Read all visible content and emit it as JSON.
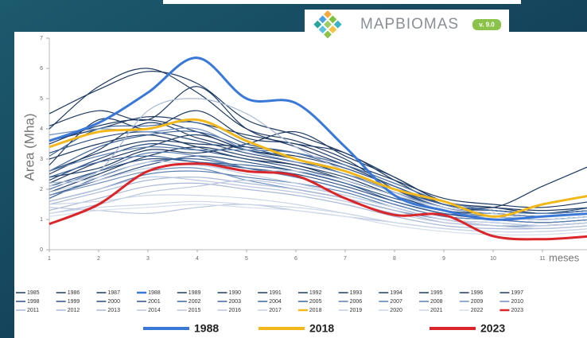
{
  "brand": {
    "name": "MAPBIOMAS",
    "version": "v. 9.0"
  },
  "chart_data": {
    "type": "line",
    "y_label": "Area (Mha)",
    "x_label": "meses",
    "x": [
      1,
      2,
      3,
      4,
      5,
      6,
      7,
      8,
      9,
      10,
      11,
      12
    ],
    "xlim": [
      1,
      11.9
    ],
    "xticks": [
      1,
      2,
      3,
      4,
      5,
      6,
      7,
      8,
      9,
      10,
      11
    ],
    "ylim": [
      0,
      7
    ],
    "yticks": [
      0,
      1,
      2,
      3,
      4,
      5,
      6,
      7
    ],
    "series": [
      {
        "name": "1985",
        "color": "#1f3b63",
        "values": [
          4.5,
          5.3,
          5.9,
          5.5,
          4.3,
          3.8,
          3.2,
          2.4,
          1.6,
          1.4,
          1.3,
          1.4
        ]
      },
      {
        "name": "1986",
        "color": "#1f3b63",
        "values": [
          3.6,
          4.0,
          4.4,
          4.2,
          3.8,
          3.5,
          3.2,
          2.3,
          1.5,
          1.3,
          1.2,
          1.3
        ]
      },
      {
        "name": "1987",
        "color": "#1f3b63",
        "values": [
          2.5,
          3.3,
          4.2,
          3.7,
          3.3,
          3.0,
          2.6,
          1.9,
          1.4,
          1.2,
          1.1,
          1.2
        ]
      },
      {
        "name": "1988",
        "color": "#3a78d8",
        "width": 3,
        "values": [
          3.6,
          4.2,
          5.2,
          6.35,
          5.0,
          4.85,
          3.4,
          1.8,
          1.3,
          1.0,
          1.1,
          1.2
        ]
      },
      {
        "name": "1989",
        "color": "#1f3b63",
        "values": [
          2.8,
          4.3,
          4.0,
          4.6,
          3.7,
          3.5,
          2.9,
          2.3,
          1.7,
          1.5,
          1.4,
          1.6
        ]
      },
      {
        "name": "1990",
        "color": "#1f3b63",
        "values": [
          3.5,
          4.1,
          4.3,
          3.9,
          3.3,
          3.1,
          2.7,
          2.1,
          1.5,
          1.3,
          1.2,
          1.3
        ]
      },
      {
        "name": "1991",
        "color": "#1f3b63",
        "values": [
          4.0,
          5.4,
          6.0,
          5.2,
          4.0,
          3.6,
          3.0,
          2.0,
          1.4,
          1.2,
          1.1,
          1.2
        ]
      },
      {
        "name": "1992",
        "color": "#1f3b63",
        "values": [
          2.4,
          2.7,
          3.3,
          3.2,
          3.5,
          3.9,
          3.1,
          2.4,
          1.6,
          1.4,
          1.2,
          1.3
        ]
      },
      {
        "name": "1993",
        "color": "#1f3b63",
        "values": [
          3.0,
          3.5,
          3.8,
          3.4,
          3.0,
          2.8,
          2.3,
          1.8,
          1.3,
          1.2,
          1.1,
          1.2
        ]
      },
      {
        "name": "1994",
        "color": "#1f3b63",
        "values": [
          1.9,
          2.5,
          3.1,
          3.4,
          3.1,
          2.8,
          2.4,
          1.8,
          1.3,
          1.1,
          1.0,
          1.1
        ]
      },
      {
        "name": "1995",
        "color": "#1f3b63",
        "values": [
          2.2,
          2.9,
          3.4,
          3.8,
          3.3,
          3.0,
          2.5,
          2.0,
          1.4,
          1.3,
          1.2,
          1.3
        ]
      },
      {
        "name": "1996",
        "color": "#1f3b63",
        "values": [
          4.1,
          4.6,
          4.3,
          5.4,
          4.0,
          3.4,
          2.8,
          2.1,
          1.5,
          1.3,
          1.2,
          1.3
        ]
      },
      {
        "name": "1997",
        "color": "#1f3b63",
        "values": [
          2.6,
          3.2,
          3.6,
          3.5,
          3.4,
          3.2,
          2.8,
          2.2,
          1.6,
          1.4,
          2.1,
          2.8
        ]
      },
      {
        "name": "1998",
        "color": "#2c4f80",
        "values": [
          1.8,
          2.3,
          2.8,
          3.1,
          2.9,
          2.6,
          2.2,
          1.7,
          1.3,
          1.1,
          1.0,
          1.1
        ]
      },
      {
        "name": "1999",
        "color": "#2c4f80",
        "values": [
          3.2,
          3.7,
          3.9,
          3.6,
          3.2,
          2.9,
          2.6,
          2.0,
          1.5,
          1.3,
          1.2,
          1.4
        ]
      },
      {
        "name": "2000",
        "color": "#2c4f80",
        "values": [
          2.3,
          3.0,
          3.5,
          3.3,
          3.0,
          2.7,
          2.3,
          1.8,
          1.3,
          1.2,
          1.1,
          1.2
        ]
      },
      {
        "name": "2001",
        "color": "#2c4f80",
        "values": [
          2.1,
          2.6,
          3.0,
          2.9,
          2.7,
          2.5,
          2.1,
          1.6,
          1.2,
          1.0,
          0.9,
          1.0
        ]
      },
      {
        "name": "2002",
        "color": "#3d649a",
        "values": [
          2.6,
          3.4,
          3.8,
          3.9,
          3.4,
          3.0,
          2.6,
          2.0,
          1.4,
          1.2,
          1.1,
          1.2
        ]
      },
      {
        "name": "2003",
        "color": "#3d649a",
        "values": [
          1.7,
          2.4,
          2.9,
          3.0,
          2.7,
          2.4,
          2.0,
          1.5,
          1.1,
          1.0,
          0.9,
          1.0
        ]
      },
      {
        "name": "2004",
        "color": "#3d649a",
        "values": [
          2.4,
          2.9,
          3.1,
          2.9,
          2.8,
          2.6,
          2.2,
          1.6,
          1.2,
          1.1,
          1.0,
          1.1
        ]
      },
      {
        "name": "2005",
        "color": "#3d649a",
        "values": [
          3.1,
          4.0,
          4.1,
          4.2,
          3.5,
          3.2,
          2.7,
          2.1,
          1.5,
          1.3,
          1.2,
          1.3
        ]
      },
      {
        "name": "2006",
        "color": "#5b7fb0",
        "values": [
          2.0,
          2.6,
          3.2,
          3.1,
          2.7,
          2.4,
          2.0,
          1.5,
          1.1,
          1.0,
          0.9,
          1.0
        ]
      },
      {
        "name": "2007",
        "color": "#5b7fb0",
        "values": [
          2.6,
          3.1,
          3.4,
          3.3,
          3.3,
          3.2,
          2.8,
          2.2,
          1.6,
          1.3,
          1.2,
          1.3
        ]
      },
      {
        "name": "2008",
        "color": "#5b7fb0",
        "values": [
          1.6,
          2.0,
          2.5,
          2.6,
          2.4,
          2.2,
          1.9,
          1.4,
          1.0,
          0.9,
          0.8,
          0.9
        ]
      },
      {
        "name": "2009",
        "color": "#6f8fbd",
        "values": [
          1.8,
          2.2,
          2.6,
          2.7,
          2.3,
          2.0,
          1.7,
          1.3,
          1.0,
          0.8,
          0.8,
          0.9
        ]
      },
      {
        "name": "2010",
        "color": "#6f8fbd",
        "values": [
          3.8,
          4.0,
          3.9,
          4.0,
          3.3,
          2.9,
          2.5,
          1.9,
          1.4,
          1.2,
          1.1,
          1.2
        ]
      },
      {
        "name": "2011",
        "color": "#a9b9d6",
        "values": [
          2.2,
          2.6,
          4.6,
          5.0,
          4.5,
          3.4,
          2.6,
          1.9,
          1.3,
          1.1,
          1.0,
          1.1
        ]
      },
      {
        "name": "2012",
        "color": "#a9b9d6",
        "values": [
          1.5,
          1.9,
          2.3,
          2.4,
          2.2,
          2.0,
          1.7,
          1.3,
          0.9,
          0.8,
          0.7,
          0.8
        ]
      },
      {
        "name": "2013",
        "color": "#a9b9d6",
        "values": [
          1.3,
          1.7,
          2.1,
          2.2,
          2.0,
          1.8,
          1.5,
          1.1,
          0.8,
          0.7,
          0.7,
          0.8
        ]
      },
      {
        "name": "2014",
        "color": "#b9c6dd",
        "values": [
          1.2,
          1.5,
          1.9,
          2.1,
          2.3,
          2.1,
          1.8,
          1.4,
          1.0,
          0.8,
          0.7,
          0.8
        ]
      },
      {
        "name": "2015",
        "color": "#b9c6dd",
        "values": [
          1.4,
          1.3,
          1.2,
          1.4,
          1.5,
          1.3,
          1.1,
          0.9,
          0.7,
          0.6,
          0.6,
          0.7
        ]
      },
      {
        "name": "2016",
        "color": "#b9c6dd",
        "values": [
          1.6,
          2.0,
          2.4,
          2.3,
          2.1,
          1.9,
          1.6,
          1.2,
          0.9,
          0.8,
          0.7,
          0.8
        ]
      },
      {
        "name": "2017",
        "color": "#c3cfe3",
        "values": [
          1.9,
          2.3,
          2.7,
          2.8,
          2.5,
          2.2,
          1.8,
          1.4,
          1.0,
          0.9,
          0.8,
          0.9
        ]
      },
      {
        "name": "2018",
        "color": "#f2b81b",
        "width": 3,
        "values": [
          3.4,
          3.9,
          4.0,
          4.3,
          3.6,
          3.0,
          2.6,
          2.0,
          1.6,
          1.1,
          1.5,
          1.8
        ]
      },
      {
        "name": "2019",
        "color": "#c3cfe3",
        "values": [
          2.1,
          2.4,
          2.9,
          2.8,
          2.6,
          2.6,
          2.3,
          1.8,
          1.4,
          1.2,
          1.0,
          1.1
        ]
      },
      {
        "name": "2020",
        "color": "#ccd6e7",
        "values": [
          1.2,
          1.4,
          1.5,
          1.6,
          1.5,
          1.4,
          1.2,
          0.9,
          0.7,
          0.6,
          0.6,
          0.7
        ]
      },
      {
        "name": "2021",
        "color": "#ccd6e7",
        "values": [
          1.5,
          1.6,
          1.8,
          1.8,
          1.7,
          1.5,
          1.2,
          0.9,
          0.7,
          0.6,
          0.6,
          0.7
        ]
      },
      {
        "name": "2022",
        "color": "#d5deec",
        "values": [
          1.1,
          1.3,
          1.4,
          1.5,
          1.4,
          1.3,
          1.1,
          0.8,
          0.6,
          0.5,
          0.5,
          0.6
        ]
      },
      {
        "name": "2023",
        "color": "#d9262a",
        "width": 3,
        "values": [
          0.85,
          1.5,
          2.6,
          2.85,
          2.6,
          2.45,
          1.7,
          1.15,
          1.15,
          0.45,
          0.35,
          0.45
        ]
      }
    ]
  }
}
